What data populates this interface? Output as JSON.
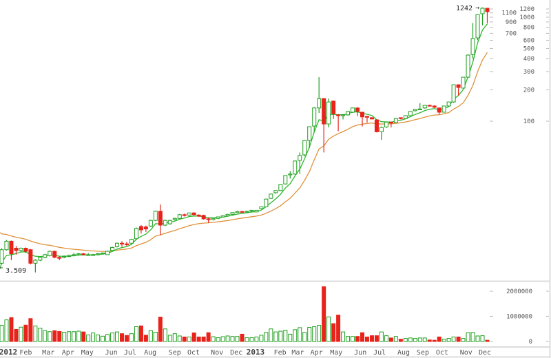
{
  "chart_data": {
    "type": "candlestick",
    "title": "",
    "interval": "weekly",
    "colors": {
      "up": "#1e9e1e",
      "down": "#e8231b",
      "ma_fast": "#2cb82c",
      "ma_slow": "#e0913a",
      "grid": "#d8d8d8",
      "text": "#555555"
    },
    "price_axis": {
      "scale": "log",
      "ylim": [
        3.4,
        1300
      ],
      "ticks": [
        100,
        200,
        300,
        400,
        500,
        600,
        700,
        800,
        900,
        1000,
        1100,
        1200
      ]
    },
    "volume_axis": {
      "ylim": [
        0,
        2200000
      ],
      "ticks": [
        0,
        1000000,
        2000000
      ],
      "tick_labels": [
        "0",
        "1000000",
        "2000000"
      ]
    },
    "x_labels": [
      {
        "label": "2012",
        "week": 0.5,
        "year": true
      },
      {
        "label": "Feb",
        "week": 5
      },
      {
        "label": "Mar",
        "week": 9.7
      },
      {
        "label": "Apr",
        "week": 13.8
      },
      {
        "label": "May",
        "week": 17.8
      },
      {
        "label": "Jun",
        "week": 22.8
      },
      {
        "label": "Jul",
        "week": 26.7
      },
      {
        "label": "Aug",
        "week": 30.9
      },
      {
        "label": "Sep",
        "week": 36
      },
      {
        "label": "Oct",
        "week": 39.9
      },
      {
        "label": "Nov",
        "week": 44.8
      },
      {
        "label": "Dec",
        "week": 48.8
      },
      {
        "label": "2013",
        "week": 52.8,
        "year": true
      },
      {
        "label": "Feb",
        "week": 57.9
      },
      {
        "label": "Mar",
        "week": 61.6
      },
      {
        "label": "Apr",
        "week": 65.5
      },
      {
        "label": "May",
        "week": 69.6
      },
      {
        "label": "Jun",
        "week": 74.6
      },
      {
        "label": "Jul",
        "week": 78.6
      },
      {
        "label": "Aug",
        "week": 83.6
      },
      {
        "label": "Sep",
        "week": 87.6
      },
      {
        "label": "Oct",
        "week": 91.6
      },
      {
        "label": "Nov",
        "week": 96.6
      },
      {
        "label": "Dec",
        "week": 100.5
      }
    ],
    "annotations": {
      "high_label": "1242",
      "high_arrow": "→",
      "low_label": "3.509"
    },
    "ma_fast": {
      "type": "ema",
      "period": 6,
      "seed": 3.8
    },
    "ma_slow": {
      "type": "ema",
      "period": 20,
      "seed": 8.5
    },
    "candles": [
      [
        4.3,
        6.0,
        4.2,
        5.8
      ],
      [
        5.8,
        7.2,
        5.7,
        7.0
      ],
      [
        7.0,
        7.1,
        4.6,
        5.3
      ],
      [
        6.0,
        6.3,
        5.2,
        5.7
      ],
      [
        5.7,
        6.1,
        5.5,
        6.0
      ],
      [
        6.0,
        6.1,
        5.4,
        5.6
      ],
      [
        5.8,
        5.9,
        4.2,
        4.3
      ],
      [
        4.3,
        4.7,
        3.509,
        4.6
      ],
      [
        4.6,
        5.0,
        4.5,
        4.9
      ],
      [
        4.9,
        5.3,
        4.8,
        5.2
      ],
      [
        5.1,
        5.7,
        5.0,
        5.6
      ],
      [
        5.6,
        5.7,
        4.8,
        4.9
      ],
      [
        4.9,
        5.0,
        4.6,
        4.8
      ],
      [
        4.9,
        5.1,
        4.8,
        5.0
      ],
      [
        5.0,
        5.2,
        4.9,
        5.1
      ],
      [
        5.1,
        5.4,
        5.0,
        5.2
      ],
      [
        5.2,
        5.4,
        5.1,
        5.3
      ],
      [
        5.3,
        5.4,
        5.1,
        5.2
      ],
      [
        5.2,
        5.4,
        5.1,
        5.2
      ],
      [
        5.2,
        5.3,
        5.1,
        5.2
      ],
      [
        5.2,
        5.4,
        5.1,
        5.3
      ],
      [
        5.3,
        5.4,
        5.2,
        5.4
      ],
      [
        5.2,
        5.7,
        5.2,
        5.6
      ],
      [
        5.7,
        6.2,
        5.6,
        6.1
      ],
      [
        6.2,
        6.8,
        6.1,
        6.7
      ],
      [
        6.7,
        7.0,
        6.2,
        6.6
      ],
      [
        6.6,
        6.9,
        6.3,
        6.5
      ],
      [
        6.7,
        7.4,
        6.6,
        7.3
      ],
      [
        7.4,
        9.5,
        7.2,
        9.3
      ],
      [
        9.7,
        10.0,
        8.3,
        9.0
      ],
      [
        9.6,
        9.9,
        8.6,
        9.2
      ],
      [
        9.8,
        11.3,
        9.6,
        11.1
      ],
      [
        11.1,
        13.8,
        10.9,
        13.6
      ],
      [
        13.6,
        15.8,
        8.0,
        10.0
      ],
      [
        10.0,
        11.3,
        9.8,
        11.1
      ],
      [
        10.3,
        11.3,
        10.1,
        11.1
      ],
      [
        11.3,
        11.8,
        11.1,
        11.6
      ],
      [
        11.6,
        12.8,
        11.5,
        12.6
      ],
      [
        12.6,
        12.9,
        12.1,
        12.4
      ],
      [
        12.5,
        13.2,
        12.3,
        13.1
      ],
      [
        13.1,
        13.3,
        12.4,
        12.6
      ],
      [
        12.5,
        12.7,
        12.0,
        12.2
      ],
      [
        12.4,
        12.6,
        11.3,
        11.5
      ],
      [
        11.5,
        11.8,
        10.5,
        11.3
      ],
      [
        11.3,
        11.7,
        11.1,
        11.6
      ],
      [
        11.6,
        12.1,
        11.4,
        12.0
      ],
      [
        12.0,
        12.4,
        11.9,
        12.3
      ],
      [
        12.3,
        12.8,
        12.2,
        12.7
      ],
      [
        12.7,
        13.3,
        12.6,
        13.2
      ],
      [
        13.2,
        13.7,
        13.1,
        13.5
      ],
      [
        13.5,
        13.7,
        13.2,
        13.4
      ],
      [
        13.4,
        13.7,
        13.3,
        13.6
      ],
      [
        13.6,
        14.0,
        13.4,
        13.9
      ],
      [
        13.4,
        14.0,
        13.3,
        13.9
      ],
      [
        14.4,
        15.1,
        14.2,
        15.0
      ],
      [
        15.0,
        18.0,
        14.9,
        17.8
      ],
      [
        18.1,
        20.1,
        17.9,
        19.9
      ],
      [
        20.5,
        21.7,
        20.0,
        21.5
      ],
      [
        21.5,
        24.8,
        21.3,
        24.6
      ],
      [
        24.9,
        30.2,
        24.6,
        30.0
      ],
      [
        30.5,
        33.0,
        28.0,
        31.0
      ],
      [
        31.0,
        41.8,
        30.5,
        41.4
      ],
      [
        42.0,
        50.0,
        31.0,
        46.7
      ],
      [
        47.4,
        66.0,
        46.0,
        65.2
      ],
      [
        65.2,
        89.0,
        55.0,
        88.5
      ],
      [
        89.8,
        136,
        79.0,
        134
      ],
      [
        134,
        265,
        120,
        165
      ],
      [
        165,
        166,
        50,
        94
      ],
      [
        94,
        165,
        87,
        153
      ],
      [
        156,
        158,
        105,
        118
      ],
      [
        115,
        117,
        80,
        113
      ],
      [
        114,
        117,
        104,
        115
      ],
      [
        115,
        125,
        113,
        124
      ],
      [
        122,
        135,
        120,
        134
      ],
      [
        134,
        136,
        112,
        124
      ],
      [
        122,
        123,
        89,
        110
      ],
      [
        111,
        112,
        97,
        110
      ],
      [
        108,
        109,
        104,
        105
      ],
      [
        103,
        104,
        78,
        79
      ],
      [
        79,
        89,
        66,
        87
      ],
      [
        88,
        99,
        86,
        98
      ],
      [
        98,
        99,
        87,
        96
      ],
      [
        97,
        107,
        96,
        106
      ],
      [
        108,
        109,
        104,
        107
      ],
      [
        106,
        114,
        105,
        113
      ],
      [
        113,
        125,
        112,
        124
      ],
      [
        126,
        131,
        124,
        130
      ],
      [
        130,
        149,
        129,
        131
      ],
      [
        134,
        143,
        132,
        142
      ],
      [
        142,
        144,
        139,
        140
      ],
      [
        140,
        142,
        134,
        136
      ],
      [
        134,
        135,
        116,
        122
      ],
      [
        122,
        141,
        121,
        140
      ],
      [
        140,
        154,
        139,
        153
      ],
      [
        153,
        225,
        150,
        224
      ],
      [
        224,
        226,
        176,
        211
      ],
      [
        208,
        267,
        206,
        265
      ],
      [
        265,
        440,
        262,
        432
      ],
      [
        438,
        880,
        400,
        624
      ],
      [
        632,
        1065,
        600,
        1060
      ],
      [
        1080,
        1242,
        835,
        1220
      ],
      [
        1220,
        1225,
        870,
        1130
      ]
    ],
    "volumes": [
      640000,
      860000,
      950000,
      480000,
      570000,
      650000,
      910000,
      620000,
      530000,
      430000,
      390000,
      430000,
      400000,
      370000,
      390000,
      390000,
      410000,
      380000,
      260000,
      340000,
      260000,
      210000,
      280000,
      340000,
      380000,
      310000,
      240000,
      310000,
      590000,
      620000,
      250000,
      430000,
      370000,
      970000,
      500000,
      250000,
      310000,
      220000,
      180000,
      180000,
      340000,
      180000,
      180000,
      350000,
      190000,
      150000,
      190000,
      220000,
      200000,
      200000,
      290000,
      150000,
      150000,
      180000,
      250000,
      360000,
      500000,
      380000,
      410000,
      450000,
      290000,
      470000,
      550000,
      360000,
      560000,
      590000,
      640000,
      2180000,
      980000,
      710000,
      1050000,
      380000,
      200000,
      200000,
      200000,
      350000,
      180000,
      230000,
      230000,
      380000,
      230000,
      140000,
      200000,
      90000,
      120000,
      140000,
      120000,
      140000,
      140000,
      60000,
      50000,
      180000,
      90000,
      120000,
      180000,
      180000,
      120000,
      350000,
      360000,
      220000,
      230000,
      50000
    ]
  }
}
